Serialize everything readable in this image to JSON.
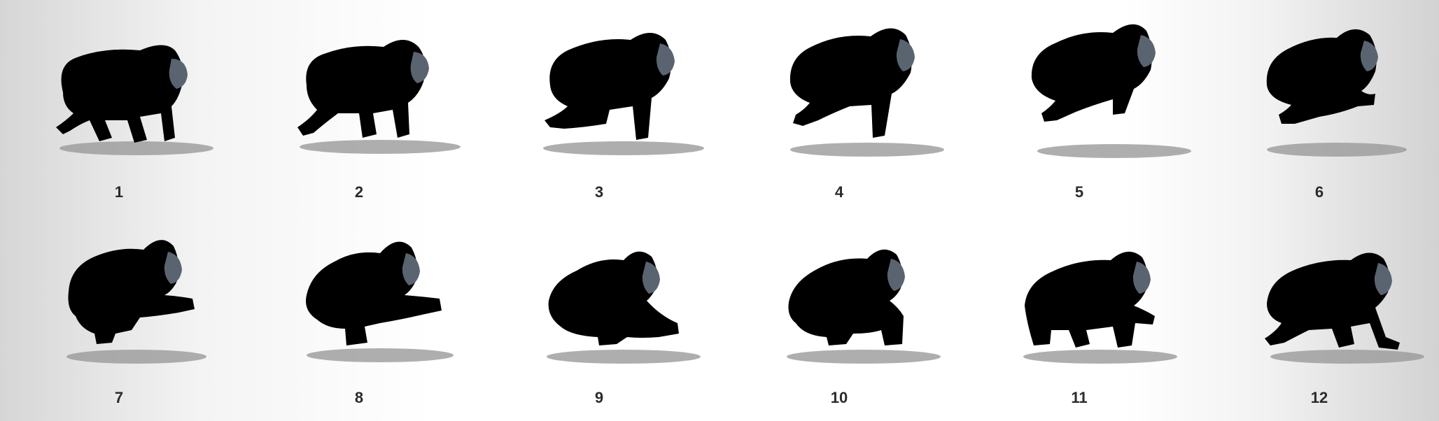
{
  "frames": [
    {
      "number": "1",
      "pose": "walk-stride"
    },
    {
      "number": "2",
      "pose": "walk-push"
    },
    {
      "number": "3",
      "pose": "lean-forward"
    },
    {
      "number": "4",
      "pose": "lift-off"
    },
    {
      "number": "5",
      "pose": "leap"
    },
    {
      "number": "6",
      "pose": "airborne"
    },
    {
      "number": "7",
      "pose": "land-prep"
    },
    {
      "number": "8",
      "pose": "land"
    },
    {
      "number": "9",
      "pose": "crouch"
    },
    {
      "number": "10",
      "pose": "crouch-rise"
    },
    {
      "number": "11",
      "pose": "walk-recover"
    },
    {
      "number": "12",
      "pose": "walk-stride"
    }
  ],
  "colors": {
    "silhouette": "#000000",
    "face": "#5a6470",
    "shadow": "#9a9a9a",
    "label": "#2b2b2b"
  }
}
